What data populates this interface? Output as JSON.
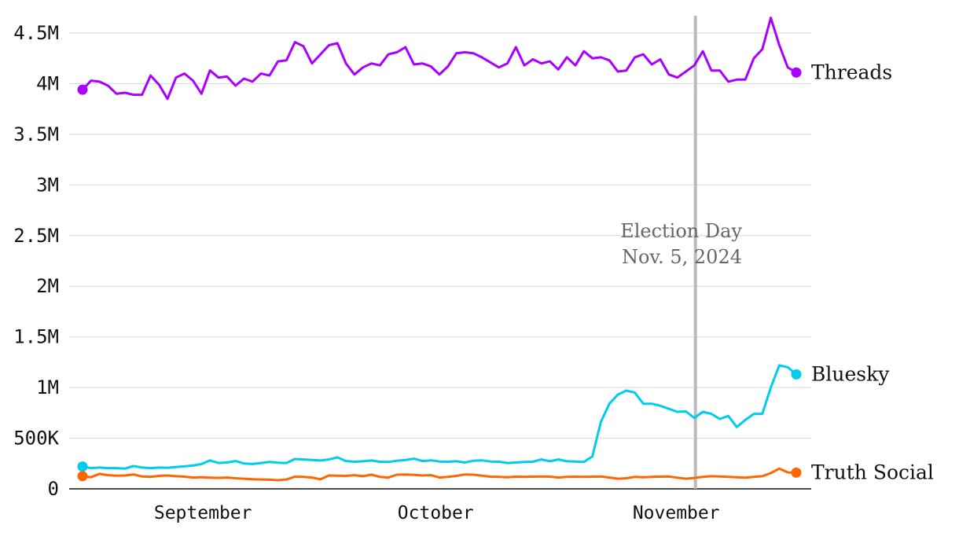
{
  "chart_data": {
    "type": "line",
    "title": "",
    "xlabel": "",
    "ylabel": "",
    "ylim": [
      0,
      4500000
    ],
    "y_ticks": [
      {
        "value": 0,
        "label": "0"
      },
      {
        "value": 500000,
        "label": "500K"
      },
      {
        "value": 1000000,
        "label": "1M"
      },
      {
        "value": 1500000,
        "label": "1.5M"
      },
      {
        "value": 2000000,
        "label": "2M"
      },
      {
        "value": 2500000,
        "label": "2.5M"
      },
      {
        "value": 3000000,
        "label": "3M"
      },
      {
        "value": 3500000,
        "label": "3.5M"
      },
      {
        "value": 4000000,
        "label": "4M"
      },
      {
        "value": 4500000,
        "label": "4.5M"
      }
    ],
    "x_start": "2024-08-18",
    "x_end": "2024-11-18",
    "x_ticks": [
      {
        "date": "2024-09-01",
        "label": "September"
      },
      {
        "date": "2024-10-01",
        "label": "October"
      },
      {
        "date": "2024-11-01",
        "label": "November"
      }
    ],
    "grid": true,
    "annotation": {
      "date": "2024-11-05",
      "line1": "Election Day",
      "line2": "Nov. 5, 2024",
      "color": "#bbbbbb"
    },
    "series": [
      {
        "name": "Threads",
        "color": "#aa00ff",
        "values": [
          3940000,
          4030000,
          4020000,
          3980000,
          3900000,
          3910000,
          3890000,
          3890000,
          4080000,
          3990000,
          3850000,
          4060000,
          4100000,
          4030000,
          3900000,
          4130000,
          4060000,
          4070000,
          3980000,
          4050000,
          4020000,
          4100000,
          4080000,
          4220000,
          4230000,
          4410000,
          4370000,
          4200000,
          4290000,
          4380000,
          4400000,
          4200000,
          4090000,
          4160000,
          4200000,
          4180000,
          4290000,
          4310000,
          4360000,
          4190000,
          4200000,
          4170000,
          4090000,
          4170000,
          4300000,
          4310000,
          4300000,
          4260000,
          4210000,
          4160000,
          4200000,
          4360000,
          4180000,
          4240000,
          4200000,
          4220000,
          4140000,
          4260000,
          4180000,
          4320000,
          4250000,
          4260000,
          4230000,
          4120000,
          4130000,
          4260000,
          4290000,
          4190000,
          4240000,
          4090000,
          4060000,
          4120000,
          4180000,
          4320000,
          4130000,
          4130000,
          4020000,
          4040000,
          4040000,
          4250000,
          4340000,
          4650000,
          4380000,
          4160000,
          4110000
        ]
      },
      {
        "name": "Bluesky",
        "color": "#00ccee",
        "values": [
          220000,
          205000,
          210000,
          205000,
          205000,
          200000,
          225000,
          210000,
          205000,
          210000,
          208000,
          215000,
          222000,
          230000,
          245000,
          280000,
          255000,
          260000,
          275000,
          250000,
          245000,
          255000,
          265000,
          258000,
          255000,
          295000,
          290000,
          285000,
          280000,
          290000,
          310000,
          275000,
          268000,
          272000,
          280000,
          268000,
          265000,
          278000,
          285000,
          298000,
          275000,
          282000,
          270000,
          268000,
          272000,
          260000,
          278000,
          282000,
          270000,
          268000,
          255000,
          260000,
          265000,
          268000,
          290000,
          272000,
          290000,
          272000,
          270000,
          265000,
          320000,
          660000,
          840000,
          930000,
          970000,
          950000,
          840000,
          840000,
          820000,
          790000,
          760000,
          765000,
          700000,
          760000,
          740000,
          690000,
          720000,
          610000,
          680000,
          740000,
          740000,
          1000000,
          1220000,
          1200000,
          1130000
        ]
      },
      {
        "name": "Truth Social",
        "color": "#ff6600",
        "values": [
          125000,
          115000,
          148000,
          135000,
          130000,
          132000,
          142000,
          122000,
          118000,
          128000,
          132000,
          125000,
          120000,
          112000,
          115000,
          110000,
          108000,
          112000,
          105000,
          100000,
          95000,
          92000,
          90000,
          85000,
          92000,
          120000,
          118000,
          112000,
          95000,
          132000,
          130000,
          128000,
          135000,
          125000,
          140000,
          118000,
          112000,
          140000,
          142000,
          138000,
          132000,
          135000,
          112000,
          118000,
          128000,
          142000,
          140000,
          130000,
          120000,
          118000,
          115000,
          120000,
          118000,
          120000,
          122000,
          120000,
          112000,
          118000,
          120000,
          118000,
          120000,
          122000,
          112000,
          100000,
          105000,
          118000,
          115000,
          118000,
          120000,
          122000,
          110000,
          100000,
          108000,
          118000,
          125000,
          122000,
          118000,
          115000,
          110000,
          118000,
          125000,
          155000,
          200000,
          162000,
          160000
        ]
      }
    ]
  }
}
